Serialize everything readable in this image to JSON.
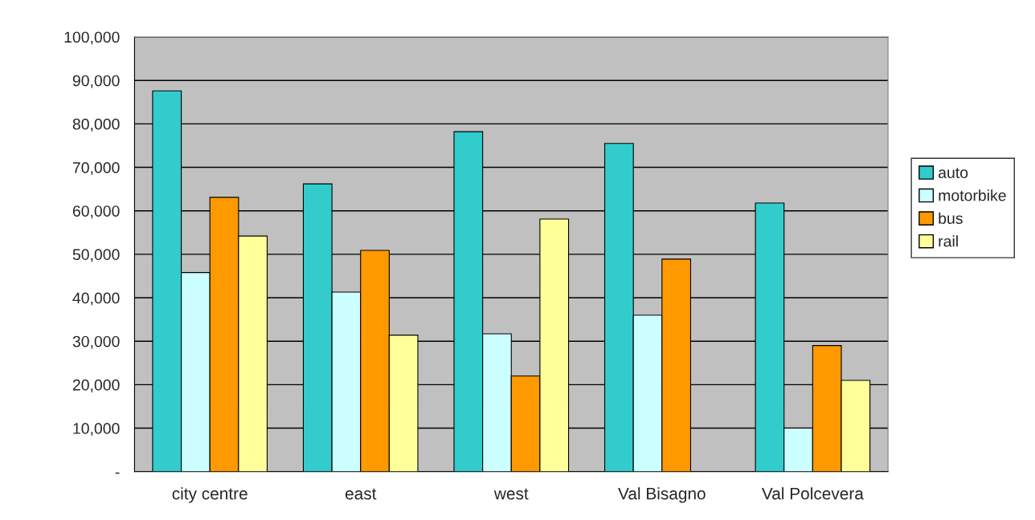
{
  "chart_data": {
    "type": "bar",
    "categories": [
      "city centre",
      "east",
      "west",
      "Val Bisagno",
      "Val Polcevera"
    ],
    "series": [
      {
        "name": "auto",
        "color": "#33cccc",
        "values": [
          87600,
          66200,
          78200,
          75500,
          61800
        ]
      },
      {
        "name": "motorbike",
        "color": "#ccffff",
        "values": [
          45800,
          41300,
          31700,
          36000,
          10000
        ]
      },
      {
        "name": "bus",
        "color": "#ff9900",
        "values": [
          63100,
          50900,
          22000,
          48900,
          29000
        ]
      },
      {
        "name": "rail",
        "color": "#ffff99",
        "values": [
          54200,
          31400,
          58100,
          null,
          21000
        ]
      }
    ],
    "ylim": [
      0,
      100000
    ],
    "yticks": [
      {
        "value": 0,
        "label": "-"
      },
      {
        "value": 10000,
        "label": "10,000"
      },
      {
        "value": 20000,
        "label": "20,000"
      },
      {
        "value": 30000,
        "label": "30,000"
      },
      {
        "value": 40000,
        "label": "40,000"
      },
      {
        "value": 50000,
        "label": "50,000"
      },
      {
        "value": 60000,
        "label": "60,000"
      },
      {
        "value": 70000,
        "label": "70,000"
      },
      {
        "value": 80000,
        "label": "80,000"
      },
      {
        "value": 90000,
        "label": "90,000"
      },
      {
        "value": 100000,
        "label": "100,000"
      }
    ],
    "grid": "y",
    "legend": "right"
  }
}
